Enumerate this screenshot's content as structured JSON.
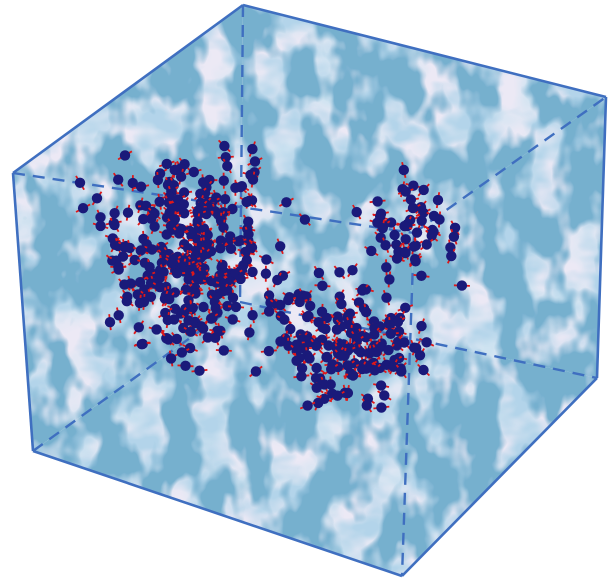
{
  "figure": {
    "description_free": true,
    "colors": {
      "background": "#ffffff",
      "face_base": "#ece9f5",
      "turbulence_light": "#b9d3e6",
      "turbulence_mid": "#7fb0d0",
      "turbulence_dark": "#2f6f9c",
      "cube_edge": "#3f6fc0",
      "particle": "#1a1a7a",
      "particle_stick": "#e01818"
    },
    "particle_count_approx": 520
  }
}
